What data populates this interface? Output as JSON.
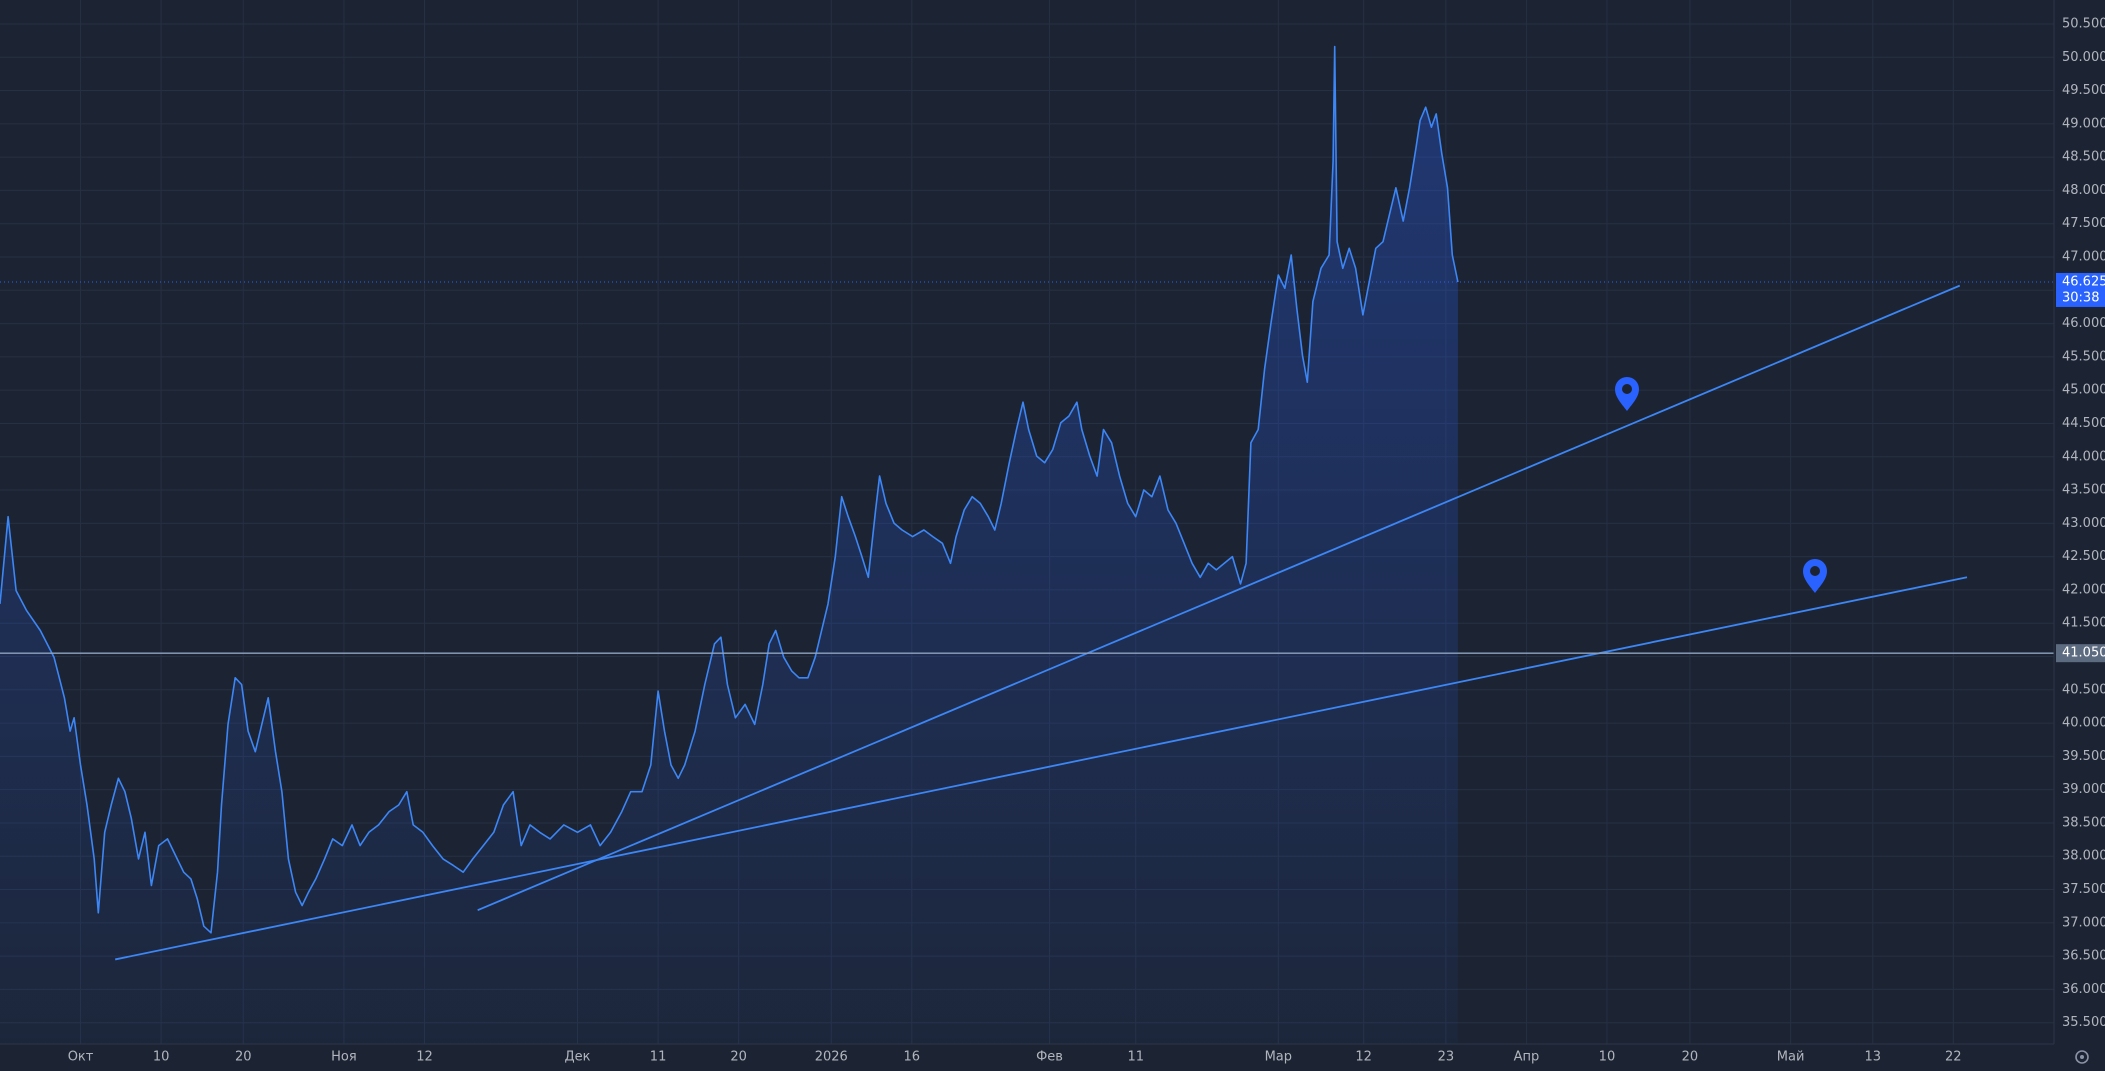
{
  "chart_data": {
    "type": "area",
    "color": "#3d86f5",
    "grid": true,
    "xlim": [
      -10,
      245
    ],
    "ylim": [
      35180,
      50860
    ],
    "xticks": [
      {
        "value": 0,
        "label": "Окт"
      },
      {
        "value": 10,
        "label": "10"
      },
      {
        "value": 20.2,
        "label": "20"
      },
      {
        "value": 32.7,
        "label": "Ноя"
      },
      {
        "value": 42.7,
        "label": "12"
      },
      {
        "value": 61.7,
        "label": "Дек"
      },
      {
        "value": 71.7,
        "label": "11"
      },
      {
        "value": 81.7,
        "label": "20"
      },
      {
        "value": 93.2,
        "label": "2026"
      },
      {
        "value": 103.2,
        "label": "16"
      },
      {
        "value": 120.3,
        "label": "Фев"
      },
      {
        "value": 131,
        "label": "11"
      },
      {
        "value": 148.7,
        "label": "Мар"
      },
      {
        "value": 159.3,
        "label": "12"
      },
      {
        "value": 169.5,
        "label": "23"
      },
      {
        "value": 179.5,
        "label": "Апр"
      },
      {
        "value": 189.5,
        "label": "10"
      },
      {
        "value": 199.8,
        "label": "20"
      },
      {
        "value": 212.3,
        "label": "Май"
      },
      {
        "value": 222.5,
        "label": "13"
      },
      {
        "value": 232.5,
        "label": "22"
      }
    ],
    "yticks": [
      {
        "value": 35500,
        "label": "35.500"
      },
      {
        "value": 36000,
        "label": "36.000"
      },
      {
        "value": 36500,
        "label": "36.500"
      },
      {
        "value": 37000,
        "label": "37.000"
      },
      {
        "value": 37500,
        "label": "37.500"
      },
      {
        "value": 38000,
        "label": "38.000"
      },
      {
        "value": 38500,
        "label": "38.500"
      },
      {
        "value": 39000,
        "label": "39.000"
      },
      {
        "value": 39500,
        "label": "39.500"
      },
      {
        "value": 40000,
        "label": "40.000"
      },
      {
        "value": 40500,
        "label": "40.500"
      },
      {
        "value": 41000,
        "label": "41.000"
      },
      {
        "value": 41500,
        "label": "41.500"
      },
      {
        "value": 42000,
        "label": "42.000"
      },
      {
        "value": 42500,
        "label": "42.500"
      },
      {
        "value": 43000,
        "label": "43.000"
      },
      {
        "value": 43500,
        "label": "43.500"
      },
      {
        "value": 44000,
        "label": "44.000"
      },
      {
        "value": 44500,
        "label": "44.500"
      },
      {
        "value": 45000,
        "label": "45.000"
      },
      {
        "value": 45500,
        "label": "45.500"
      },
      {
        "value": 46000,
        "label": "46.000"
      },
      {
        "value": 46500,
        "label": "46.500"
      },
      {
        "value": 47000,
        "label": "47.000"
      },
      {
        "value": 47500,
        "label": "47.500"
      },
      {
        "value": 48000,
        "label": "48.000"
      },
      {
        "value": 48500,
        "label": "48.500"
      },
      {
        "value": 49000,
        "label": "49.000"
      },
      {
        "value": 49500,
        "label": "49.500"
      },
      {
        "value": 50000,
        "label": "50.000"
      },
      {
        "value": 50500,
        "label": "50.500"
      }
    ],
    "x": [
      -10,
      -9,
      -8,
      -6.7,
      -5,
      -3.3,
      -2,
      -1.3,
      -0.8,
      0,
      0.8,
      1.7,
      2.2,
      3,
      3.8,
      4.7,
      5.5,
      6.3,
      7.2,
      8,
      8.8,
      9.7,
      10.8,
      12,
      12.8,
      13.7,
      14.5,
      15.3,
      16.2,
      17,
      17.5,
      18.3,
      19.2,
      20,
      20.8,
      21.7,
      22.5,
      23.3,
      24.2,
      25,
      25.8,
      26.7,
      27.5,
      28.3,
      29.2,
      30.3,
      31.3,
      32.5,
      33.7,
      34.7,
      35.8,
      37,
      38.3,
      39.5,
      40.5,
      41.3,
      42.5,
      43.7,
      45,
      46.3,
      47.5,
      48.7,
      50,
      51.3,
      52.5,
      53.7,
      54.7,
      55.8,
      57,
      58.3,
      60,
      61.7,
      63.3,
      64.5,
      65.8,
      67.2,
      68.3,
      69.7,
      70.8,
      71.7,
      72.5,
      73.3,
      74.2,
      75,
      76.3,
      77.5,
      78.7,
      79.5,
      80.3,
      81.3,
      82.5,
      83.7,
      84.7,
      85.5,
      86.3,
      87.3,
      88.3,
      89.2,
      90.3,
      91.2,
      92,
      92.8,
      93.7,
      94.5,
      95.3,
      96.2,
      97,
      97.8,
      98.7,
      99.2,
      100,
      101,
      102,
      103.3,
      104.7,
      105.8,
      107,
      108,
      108.7,
      109.7,
      110.7,
      111.7,
      112.7,
      113.5,
      114.3,
      115.3,
      116.2,
      117,
      117.7,
      118.7,
      119.7,
      120.7,
      121.7,
      122.7,
      123.7,
      124.3,
      125.3,
      126.2,
      127,
      128,
      129,
      130,
      131,
      132,
      133,
      134,
      135,
      136,
      137,
      138,
      139,
      140,
      141,
      142,
      143,
      144,
      144.7,
      145.3,
      146.2,
      147,
      147.8,
      148.7,
      149.5,
      150.3,
      151,
      151.7,
      152.3,
      153,
      154,
      155,
      155.5,
      155.7,
      156,
      156.7,
      157.5,
      158.3,
      159.2,
      160,
      160.8,
      161.7,
      162.5,
      163.3,
      164.2,
      165,
      165.8,
      166.3,
      167,
      167.7,
      168.3,
      169,
      169.7,
      170.3,
      171
    ],
    "values": [
      41790,
      43100,
      41990,
      41690,
      41390,
      40990,
      40380,
      39880,
      40080,
      39370,
      38770,
      37960,
      37150,
      38360,
      38770,
      39170,
      38970,
      38570,
      37960,
      38360,
      37560,
      38160,
      38260,
      37960,
      37760,
      37660,
      37360,
      36950,
      36850,
      37760,
      38770,
      39980,
      40680,
      40580,
      39880,
      39570,
      39980,
      40380,
      39570,
      38970,
      37960,
      37460,
      37260,
      37460,
      37660,
      37960,
      38260,
      38160,
      38470,
      38160,
      38360,
      38470,
      38670,
      38770,
      38970,
      38470,
      38360,
      38160,
      37960,
      37860,
      37760,
      37960,
      38160,
      38360,
      38770,
      38970,
      38160,
      38470,
      38360,
      38260,
      38470,
      38360,
      38470,
      38160,
      38360,
      38670,
      38970,
      38970,
      39370,
      40480,
      39880,
      39370,
      39170,
      39370,
      39880,
      40580,
      41190,
      41290,
      40580,
      40080,
      40280,
      39980,
      40580,
      41190,
      41390,
      40990,
      40780,
      40680,
      40680,
      40990,
      41390,
      41790,
      42500,
      43400,
      43100,
      42800,
      42500,
      42190,
      43200,
      43710,
      43300,
      43000,
      42900,
      42800,
      42900,
      42800,
      42700,
      42400,
      42800,
      43200,
      43400,
      43300,
      43100,
      42900,
      43300,
      43910,
      44410,
      44820,
      44410,
      44010,
      43910,
      44110,
      44510,
      44610,
      44820,
      44410,
      44010,
      43710,
      44410,
      44210,
      43710,
      43300,
      43100,
      43500,
      43400,
      43710,
      43200,
      43000,
      42700,
      42400,
      42190,
      42400,
      42300,
      42400,
      42500,
      42090,
      42400,
      44210,
      44410,
      45320,
      46020,
      46730,
      46530,
      47030,
      46230,
      45520,
      45120,
      46330,
      46830,
      47030,
      48440,
      50160,
      47230,
      46830,
      47130,
      46830,
      46130,
      46630,
      47130,
      47230,
      47640,
      48040,
      47540,
      48040,
      48650,
      49050,
      49250,
      48950,
      49150,
      48550,
      48040,
      47030,
      46625
    ],
    "last_price": {
      "value": 46625,
      "label": "46.625"
    },
    "countdown": "30:38",
    "hline": {
      "value": 41050,
      "label": "41.050"
    },
    "trendlines": [
      {
        "x": [
          4.3,
          234.2
        ],
        "y": [
          36450,
          42190
        ]
      },
      {
        "x": [
          49.3,
          233.3
        ],
        "y": [
          37190,
          46570
        ]
      }
    ]
  }
}
